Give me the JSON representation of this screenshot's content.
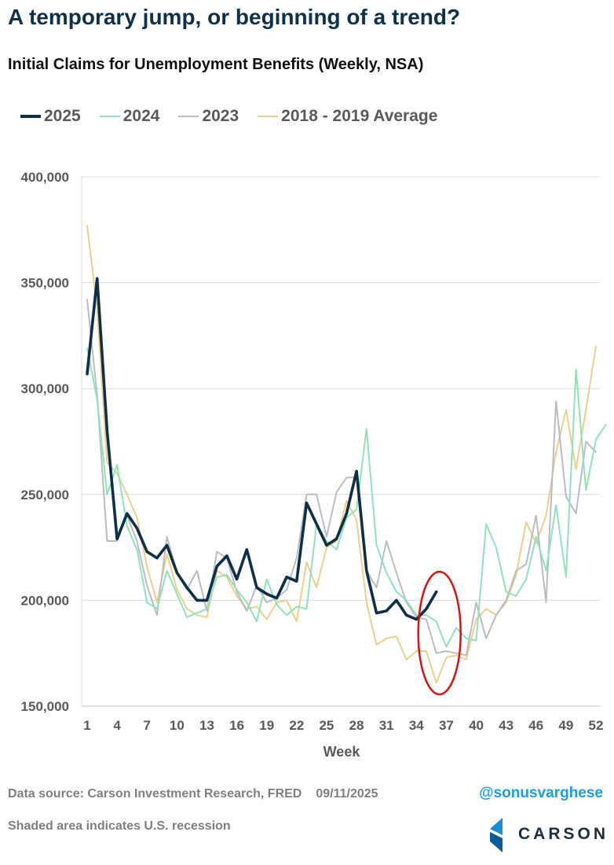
{
  "header": {
    "title": "A temporary jump, or beginning of a trend?",
    "subtitle": "Initial Claims for Unemployment Benefits (Weekly, NSA)"
  },
  "footer": {
    "source": "Data source: Carson Investment Research, FRED",
    "date": "09/11/2025",
    "note": "Shaded area indicates U.S. recession",
    "handle": "@sonusvarghese",
    "logo_text": "CARSON"
  },
  "colors": {
    "2025": "#0e2f47",
    "2024": "#8ee3b8",
    "2023": "#b8bdc2",
    "avg": "#ecd08a",
    "annotation": "#e01010",
    "logo_blue": "#1a8fd8"
  },
  "chart_data": {
    "type": "line",
    "xlabel": "Week",
    "ylabel": "",
    "xlim": [
      1,
      52
    ],
    "ylim": [
      150000,
      400000
    ],
    "y_ticks": [
      "150,000",
      "200,000",
      "250,000",
      "300,000",
      "350,000",
      "400,000"
    ],
    "x_ticks": [
      "1",
      "4",
      "7",
      "10",
      "13",
      "16",
      "19",
      "22",
      "25",
      "28",
      "31",
      "34",
      "37",
      "40",
      "43",
      "46",
      "49",
      "52"
    ],
    "grid": true,
    "legend_position": "top-left",
    "annotation": "red ellipse around weeks 34-37",
    "series": [
      {
        "name": "2025",
        "values": [
          307000,
          352000,
          280000,
          229000,
          241000,
          234000,
          223000,
          220000,
          226000,
          213000,
          206000,
          200000,
          200000,
          216000,
          221000,
          210000,
          224000,
          206000,
          203000,
          201000,
          211000,
          209000,
          246000,
          236000,
          226000,
          229000,
          241000,
          261000,
          214000,
          194000,
          195000,
          200000,
          193000,
          191000,
          196000,
          204000
        ]
      },
      {
        "name": "2024",
        "values": [
          319000,
          295000,
          250000,
          264000,
          235000,
          224000,
          199000,
          196000,
          214000,
          203000,
          192000,
          194000,
          196000,
          211000,
          212000,
          205000,
          199000,
          190000,
          210000,
          198000,
          193000,
          197000,
          196000,
          236000,
          228000,
          224000,
          239000,
          243000,
          281000,
          226000,
          213000,
          204000,
          200000,
          193000,
          193000,
          190000,
          178000,
          187000,
          182000,
          181000,
          236000,
          225000,
          204000,
          202000,
          210000,
          230000,
          214000,
          245000,
          211000,
          309000,
          252000,
          276000,
          283000
        ]
      },
      {
        "name": "2023",
        "values": [
          342000,
          297000,
          228000,
          228000,
          240000,
          228000,
          207000,
          193000,
          230000,
          213000,
          205000,
          214000,
          195000,
          223000,
          220000,
          204000,
          195000,
          207000,
          199000,
          201000,
          205000,
          220000,
          250000,
          250000,
          230000,
          251000,
          258000,
          258000,
          214000,
          206000,
          228000,
          213000,
          199000,
          192000,
          191000,
          175000,
          176000,
          175000,
          174000,
          199000,
          182000,
          193000,
          200000,
          214000,
          217000,
          240000,
          199000,
          294000,
          249000,
          241000,
          275000,
          270000
        ]
      },
      {
        "name": "2018 - 2019 Average",
        "values": [
          377000,
          338000,
          265000,
          260000,
          250000,
          239000,
          216000,
          199000,
          222000,
          205000,
          196000,
          193000,
          192000,
          214000,
          211000,
          202000,
          196000,
          197000,
          191000,
          199000,
          200000,
          190000,
          218000,
          206000,
          225000,
          228000,
          247000,
          238000,
          199000,
          179000,
          182000,
          183000,
          172000,
          176000,
          176000,
          161000,
          173000,
          174000,
          172000,
          191000,
          196000,
          193000,
          199000,
          212000,
          237000,
          227000,
          240000,
          270000,
          290000,
          262000,
          290000,
          320000
        ]
      }
    ]
  }
}
